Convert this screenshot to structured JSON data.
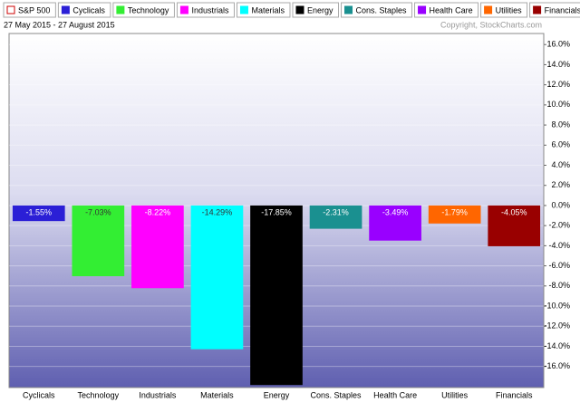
{
  "chart_data": {
    "type": "bar",
    "legend": [
      {
        "name": "S&P 500",
        "color": "#ffffff",
        "outline": "#cc0000"
      },
      {
        "name": "Cyclicals",
        "color": "#2b1fd6"
      },
      {
        "name": "Technology",
        "color": "#33ee33"
      },
      {
        "name": "Industrials",
        "color": "#ff00ff"
      },
      {
        "name": "Materials",
        "color": "#00ffff"
      },
      {
        "name": "Energy",
        "color": "#000000"
      },
      {
        "name": "Cons. Staples",
        "color": "#1a9090"
      },
      {
        "name": "Health Care",
        "color": "#9900ff"
      },
      {
        "name": "Utilities",
        "color": "#ff6600"
      },
      {
        "name": "Financials",
        "color": "#990000"
      }
    ],
    "subtitle": "27 May 2015 - 27 August 2015",
    "copyright": "Copyright, StockCharts.com",
    "categories": [
      "Cyclicals",
      "Technology",
      "Industrials",
      "Materials",
      "Energy",
      "Cons. Staples",
      "Health Care",
      "Utilities",
      "Financials"
    ],
    "values": [
      -1.55,
      -7.03,
      -8.22,
      -14.29,
      -17.85,
      -2.31,
      -3.49,
      -1.79,
      -4.05
    ],
    "value_labels": [
      "-1.55%",
      "-7.03%",
      "-8.22%",
      "-14.29%",
      "-17.85%",
      "-2.31%",
      "-3.49%",
      "-1.79%",
      "-4.05%"
    ],
    "colors": [
      "#2b1fd6",
      "#33ee33",
      "#ff00ff",
      "#00ffff",
      "#000000",
      "#1a9090",
      "#9900ff",
      "#ff6600",
      "#990000"
    ],
    "ylim": [
      -18.1,
      17.1
    ],
    "yticks": [
      {
        "value": 16,
        "label": "16.0%"
      },
      {
        "value": 14,
        "label": "14.0%"
      },
      {
        "value": 12,
        "label": "12.0%"
      },
      {
        "value": 10,
        "label": "10.0%"
      },
      {
        "value": 8,
        "label": "8.0%"
      },
      {
        "value": 6,
        "label": "6.0%"
      },
      {
        "value": 4,
        "label": "4.0%"
      },
      {
        "value": 2,
        "label": "2.0%"
      },
      {
        "value": 0,
        "label": "0.0%"
      },
      {
        "value": -2,
        "label": "-2.0%"
      },
      {
        "value": -4,
        "label": "-4.0%"
      },
      {
        "value": -6,
        "label": "-6.0%"
      },
      {
        "value": -8,
        "label": "-8.0%"
      },
      {
        "value": -10,
        "label": "-10.0%"
      },
      {
        "value": -12,
        "label": "-12.0%"
      },
      {
        "value": -14,
        "label": "-14.0%"
      },
      {
        "value": -16,
        "label": "-16.0%"
      }
    ],
    "grid": true
  }
}
